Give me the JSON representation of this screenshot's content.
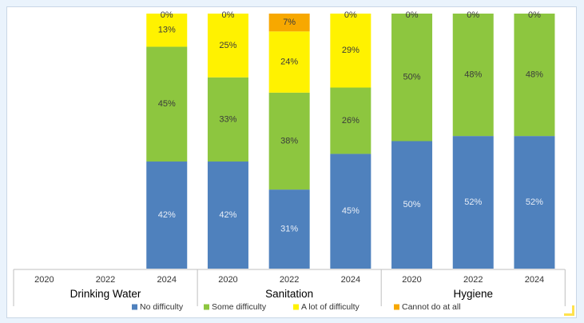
{
  "chart_data": {
    "type": "bar",
    "stacked": true,
    "orientation": "vertical",
    "ylim": [
      0,
      100
    ],
    "grid": false,
    "legend_position": "bottom",
    "x_levels": [
      "2020",
      "2022",
      "2024",
      "2020",
      "2022",
      "2024",
      "2020",
      "2022",
      "2024"
    ],
    "groups": [
      {
        "name": "Drinking Water",
        "years": [
          "2020",
          "2022",
          "2024"
        ]
      },
      {
        "name": "Sanitation",
        "years": [
          "2020",
          "2022",
          "2024"
        ]
      },
      {
        "name": "Hygiene",
        "years": [
          "2020",
          "2022",
          "2024"
        ]
      }
    ],
    "series": [
      {
        "name": "No difficulty",
        "color": "#4f81bd",
        "values": [
          null,
          null,
          42,
          42,
          31,
          45,
          50,
          52,
          52
        ],
        "labels": [
          "",
          "",
          "42%",
          "42%",
          "31%",
          "45%",
          "50%",
          "52%",
          "52%"
        ]
      },
      {
        "name": "Some difficulty",
        "color": "#8dc63f",
        "values": [
          null,
          null,
          45,
          33,
          38,
          26,
          50,
          48,
          48
        ],
        "labels": [
          "",
          "",
          "45%",
          "33%",
          "38%",
          "26%",
          "50%",
          "48%",
          "48%"
        ]
      },
      {
        "name": "A lot of difficulty",
        "color": "#fff200",
        "values": [
          null,
          null,
          13,
          25,
          24,
          29,
          0,
          0,
          0
        ],
        "labels": [
          "",
          "",
          "13%",
          "25%",
          "24%",
          "29%",
          "",
          "",
          ""
        ]
      },
      {
        "name": "Cannot do at all",
        "color": "#f7a800",
        "values": [
          null,
          null,
          0,
          0,
          7,
          0,
          0,
          0,
          0
        ],
        "labels": [
          "",
          "",
          "0%",
          "0%",
          "7%",
          "0%",
          "0%",
          "0%",
          "0%"
        ]
      }
    ]
  }
}
